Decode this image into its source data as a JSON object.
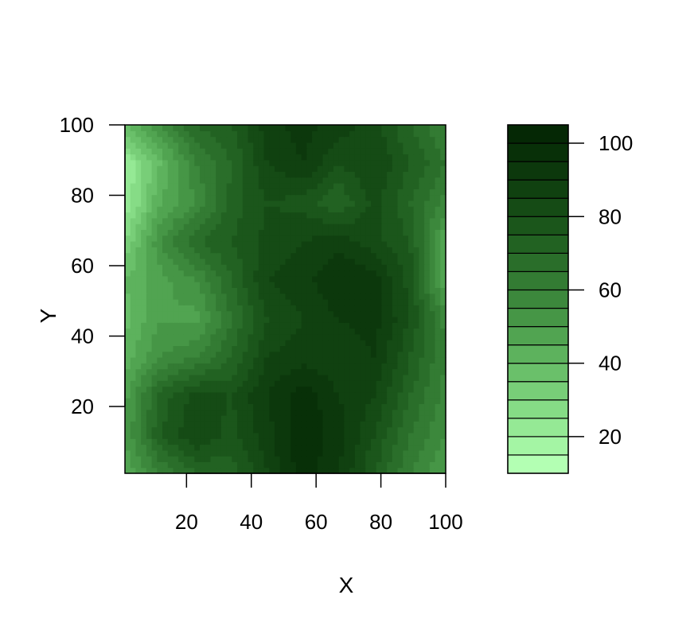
{
  "chart_data": {
    "type": "heatmap",
    "title": "",
    "xlabel": "X",
    "ylabel": "Y",
    "xlim": [
      1,
      100
    ],
    "ylim": [
      1,
      100
    ],
    "xticks": [
      20,
      40,
      60,
      80,
      100
    ],
    "yticks": [
      20,
      40,
      60,
      80,
      100
    ],
    "x": [
      1,
      12,
      23,
      34,
      45,
      56,
      67,
      78,
      89,
      100
    ],
    "y": [
      1,
      12,
      23,
      34,
      45,
      56,
      67,
      78,
      89,
      100
    ],
    "values": [
      [
        45,
        60,
        70,
        72,
        85,
        98,
        90,
        75,
        60,
        50
      ],
      [
        50,
        75,
        85,
        78,
        88,
        100,
        92,
        80,
        65,
        55
      ],
      [
        48,
        72,
        82,
        80,
        90,
        98,
        90,
        85,
        70,
        58
      ],
      [
        42,
        55,
        60,
        70,
        85,
        88,
        86,
        90,
        75,
        60
      ],
      [
        38,
        50,
        48,
        65,
        80,
        85,
        90,
        92,
        80,
        58
      ],
      [
        40,
        48,
        55,
        70,
        85,
        88,
        95,
        92,
        78,
        45
      ],
      [
        30,
        55,
        70,
        75,
        82,
        85,
        88,
        82,
        75,
        45
      ],
      [
        20,
        45,
        55,
        72,
        80,
        78,
        70,
        82,
        70,
        58
      ],
      [
        20,
        40,
        60,
        70,
        85,
        90,
        80,
        85,
        75,
        65
      ],
      [
        40,
        55,
        70,
        75,
        88,
        92,
        88,
        82,
        70,
        60
      ]
    ],
    "legend": {
      "placement": "right",
      "ticks": [
        20,
        40,
        60,
        80,
        100
      ],
      "levels": [
        10,
        15,
        20,
        25,
        30,
        35,
        40,
        45,
        50,
        55,
        60,
        65,
        70,
        75,
        80,
        85,
        90,
        95,
        100,
        105
      ],
      "colors": [
        "#b3ffb3",
        "#a4f5a4",
        "#95e995",
        "#86dc86",
        "#78ce78",
        "#6ac06a",
        "#5db25d",
        "#51a451",
        "#469646",
        "#3c883c",
        "#337b33",
        "#2a6e2a",
        "#226222",
        "#1b561b",
        "#154b15",
        "#104110",
        "#0c380c",
        "#083008",
        "#052805"
      ],
      "color_low": "#b3ffb3",
      "color_high": "#005100"
    },
    "grid": false
  }
}
